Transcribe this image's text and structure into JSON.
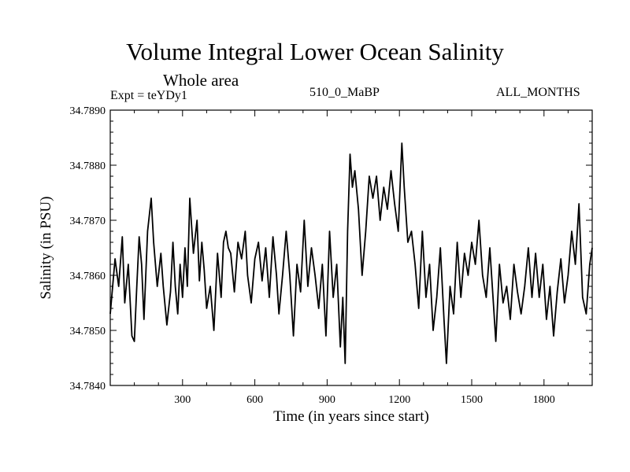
{
  "chart_data": {
    "type": "line",
    "title": "Volume Integral Lower Ocean Salinity",
    "subtitle": "Whole area",
    "experiment_label": "Expt = teYDy1",
    "run_label": "510_0_MaBP",
    "months_label": "ALL_MONTHS",
    "xlabel": "Time (in years since start)",
    "ylabel": "Salinity (in PSU)",
    "xlim": [
      0,
      2000
    ],
    "ylim": [
      34.784,
      34.789
    ],
    "x_ticks": [
      300,
      600,
      900,
      1200,
      1500,
      1800
    ],
    "x_tick_labels": [
      "300",
      "600",
      "900",
      "1200",
      "1500",
      "1800"
    ],
    "y_ticks": [
      34.784,
      34.785,
      34.786,
      34.787,
      34.788,
      34.789
    ],
    "y_tick_labels": [
      "34.7840",
      "34.7850",
      "34.7860",
      "34.7870",
      "34.7880",
      "34.7890"
    ],
    "series": [
      {
        "name": "salinity",
        "color": "#000000",
        "x": [
          0,
          20,
          35,
          50,
          60,
          75,
          90,
          100,
          110,
          120,
          130,
          140,
          155,
          170,
          180,
          195,
          210,
          220,
          235,
          250,
          260,
          270,
          280,
          290,
          300,
          310,
          320,
          330,
          345,
          360,
          370,
          380,
          390,
          400,
          415,
          430,
          445,
          460,
          470,
          480,
          490,
          500,
          515,
          530,
          545,
          560,
          570,
          585,
          600,
          615,
          630,
          645,
          660,
          675,
          690,
          700,
          715,
          730,
          745,
          760,
          775,
          790,
          805,
          820,
          835,
          850,
          865,
          880,
          895,
          910,
          925,
          940,
          955,
          965,
          975,
          985,
          995,
          1005,
          1015,
          1030,
          1045,
          1060,
          1075,
          1090,
          1105,
          1120,
          1135,
          1150,
          1165,
          1180,
          1195,
          1210,
          1220,
          1235,
          1250,
          1265,
          1280,
          1295,
          1310,
          1325,
          1340,
          1355,
          1370,
          1385,
          1395,
          1410,
          1425,
          1440,
          1455,
          1470,
          1485,
          1500,
          1515,
          1530,
          1545,
          1560,
          1575,
          1590,
          1600,
          1615,
          1630,
          1645,
          1660,
          1675,
          1690,
          1705,
          1720,
          1735,
          1750,
          1765,
          1780,
          1795,
          1810,
          1825,
          1840,
          1855,
          1870,
          1885,
          1900,
          1915,
          1930,
          1945,
          1960,
          1975,
          1990,
          2000
        ],
        "y": [
          34.7853,
          34.7863,
          34.7858,
          34.7867,
          34.7855,
          34.7862,
          34.7849,
          34.7848,
          34.7858,
          34.7867,
          34.7862,
          34.7852,
          34.7868,
          34.7874,
          34.7866,
          34.7858,
          34.7864,
          34.7858,
          34.7851,
          34.7857,
          34.7866,
          34.7858,
          34.7853,
          34.7862,
          34.7856,
          34.7865,
          34.7858,
          34.7874,
          34.7864,
          34.787,
          34.7859,
          34.7866,
          34.7861,
          34.7854,
          34.7858,
          34.785,
          34.7864,
          34.7856,
          34.7866,
          34.7868,
          34.7865,
          34.7864,
          34.7857,
          34.7866,
          34.7863,
          34.7868,
          34.786,
          34.7855,
          34.7863,
          34.7866,
          34.7859,
          34.7865,
          34.7856,
          34.7867,
          34.786,
          34.7853,
          34.786,
          34.7868,
          34.786,
          34.7849,
          34.7862,
          34.7857,
          34.787,
          34.7858,
          34.7865,
          34.786,
          34.7854,
          34.7862,
          34.7849,
          34.7868,
          34.7856,
          34.7862,
          34.7847,
          34.7856,
          34.7844,
          34.7868,
          34.7882,
          34.7876,
          34.7879,
          34.7872,
          34.786,
          34.7868,
          34.7878,
          34.7874,
          34.7878,
          34.787,
          34.7876,
          34.7872,
          34.7879,
          34.7873,
          34.7868,
          34.7884,
          34.7876,
          34.7866,
          34.7868,
          34.7862,
          34.7854,
          34.7868,
          34.7856,
          34.7862,
          34.785,
          34.7856,
          34.7865,
          34.7852,
          34.7844,
          34.7858,
          34.7853,
          34.7866,
          34.7856,
          34.7864,
          34.786,
          34.7866,
          34.7862,
          34.787,
          34.786,
          34.7856,
          34.7865,
          34.7855,
          34.7848,
          34.7862,
          34.7855,
          34.7858,
          34.7852,
          34.7862,
          34.7857,
          34.7853,
          34.7858,
          34.7865,
          34.7856,
          34.7864,
          34.7856,
          34.7862,
          34.7852,
          34.7858,
          34.7849,
          34.7857,
          34.7863,
          34.7855,
          34.786,
          34.7868,
          34.7862,
          34.7873,
          34.7856,
          34.7853,
          34.7862,
          34.7865
        ]
      }
    ]
  }
}
